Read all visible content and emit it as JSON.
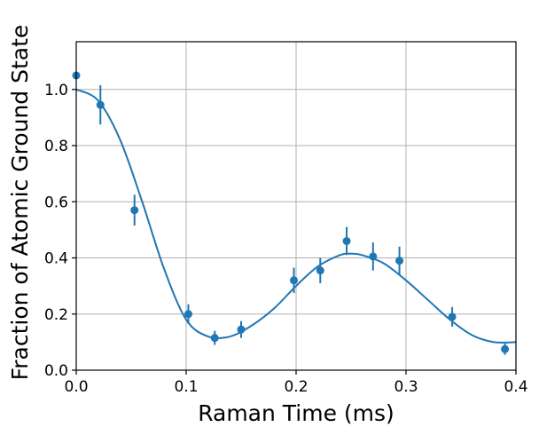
{
  "chart_data": {
    "type": "scatter",
    "xlabel": "Raman Time (ms)",
    "ylabel": "Fraction of Atomic Ground State",
    "xlim": [
      0.0,
      0.4
    ],
    "ylim": [
      0.0,
      1.17
    ],
    "xticks": [
      0.0,
      0.1,
      0.2,
      0.3,
      0.4
    ],
    "yticks": [
      0.0,
      0.2,
      0.4,
      0.6,
      0.8,
      1.0
    ],
    "xtick_labels": [
      "0.0",
      "0.1",
      "0.2",
      "0.3",
      "0.4"
    ],
    "ytick_labels": [
      "0.0",
      "0.2",
      "0.4",
      "0.6",
      "0.8",
      "1.0"
    ],
    "grid": true,
    "color": "#1f77b4",
    "series": [
      {
        "kind": "errorbar",
        "x": [
          0.0,
          0.022,
          0.053,
          0.102,
          0.126,
          0.15,
          0.198,
          0.222,
          0.246,
          0.27,
          0.294,
          0.342,
          0.39
        ],
        "y": [
          1.05,
          0.945,
          0.57,
          0.2,
          0.115,
          0.145,
          0.32,
          0.355,
          0.46,
          0.405,
          0.39,
          0.19,
          0.075
        ],
        "yerr": [
          0.0,
          0.07,
          0.055,
          0.035,
          0.025,
          0.03,
          0.045,
          0.045,
          0.05,
          0.05,
          0.05,
          0.035,
          0.02
        ]
      },
      {
        "kind": "fit-line",
        "x": [
          0.0,
          0.02,
          0.04,
          0.06,
          0.08,
          0.1,
          0.12,
          0.14,
          0.16,
          0.18,
          0.2,
          0.22,
          0.24,
          0.25,
          0.26,
          0.28,
          0.3,
          0.32,
          0.34,
          0.36,
          0.38,
          0.4
        ],
        "y": [
          1.0,
          0.96,
          0.82,
          0.6,
          0.36,
          0.18,
          0.12,
          0.12,
          0.16,
          0.22,
          0.3,
          0.37,
          0.41,
          0.415,
          0.41,
          0.38,
          0.32,
          0.25,
          0.18,
          0.125,
          0.1,
          0.1
        ]
      }
    ]
  }
}
